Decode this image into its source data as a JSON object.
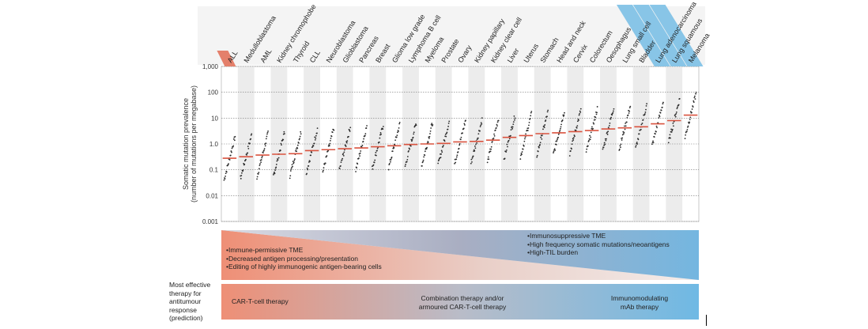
{
  "chart_data": {
    "type": "scatter",
    "ylabel_line1": "Somatic mutation prevalence",
    "ylabel_line2": "(number of mutations per megabase)",
    "yscale": "log",
    "ylim": [
      0.001,
      1000
    ],
    "yticks": [
      "0.001",
      "0.01",
      "0.1",
      "1.0",
      "10",
      "100",
      "1,000"
    ],
    "grid": "dotted horizontal lines at decades, alternating grey column bands",
    "categories": [
      "ALL",
      "Medulloblastoma",
      "AML",
      "Kidney chromophobe",
      "Thyroid",
      "CLL",
      "Neuroblastoma",
      "Glioblastoma",
      "Pancreas",
      "Breast",
      "Glioma low grade",
      "Lymphoma B cell",
      "Myeloma",
      "Prostate",
      "Ovary",
      "Kidney papillary",
      "Kidney clear cell",
      "Liver",
      "Uterus",
      "Stomach",
      "Head and neck",
      "Cervix",
      "Colorectum",
      "Oesophagus",
      "Lung small cell",
      "Bladder",
      "Lung adenocarcinoma",
      "Lung squamous",
      "Melanoma"
    ],
    "medians": [
      0.28,
      0.32,
      0.37,
      0.4,
      0.42,
      0.55,
      0.6,
      0.65,
      0.7,
      0.78,
      0.85,
      0.95,
      1.0,
      1.05,
      1.2,
      1.25,
      1.4,
      1.8,
      2.1,
      2.5,
      2.7,
      3.0,
      3.3,
      3.8,
      4.2,
      4.6,
      6.0,
      8.0,
      13.0
    ],
    "median_color": "#d9533f",
    "point_color": "#2a2a2a",
    "highlight_left": {
      "categories": [
        "ALL"
      ],
      "color": "#e4806b"
    },
    "highlight_right": {
      "categories": [
        "Lung adenocarcinoma",
        "Lung squamous",
        "Melanoma"
      ],
      "color": "#7cc0e6"
    }
  },
  "panel_left": {
    "items": [
      "Immune-permissive TME",
      "Decreased antigen processing/presentation",
      "Editing of highly immunogenic antigen-bearing cells"
    ]
  },
  "panel_right": {
    "items": [
      "Immunosuppressive TME",
      "High frequency somatic mutations/neoantigens",
      "High-TIL burden"
    ]
  },
  "therapy": {
    "side_label": "Most effective therapy for antitumour response (prediction)",
    "left": "CAR-T-cell therapy",
    "middle": "Combination therapy and/or armoured CAR-T-cell therapy",
    "right": "Immunomodulating mAb therapy"
  },
  "colors": {
    "warm": "#ee8f76",
    "cool": "#6fb9e4",
    "mid": "#b9bcc8"
  }
}
